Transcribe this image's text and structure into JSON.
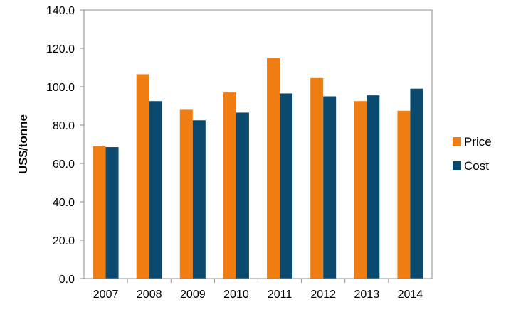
{
  "chart_data": {
    "type": "bar",
    "title": "",
    "xlabel": "",
    "ylabel": "US$/tonne",
    "ylim": [
      0,
      140
    ],
    "yticks": [
      "0.0",
      "20.0",
      "40.0",
      "60.0",
      "80.0",
      "100.0",
      "120.0",
      "140.0"
    ],
    "grid": false,
    "legend_position": "right",
    "categories": [
      "2007",
      "2008",
      "2009",
      "2010",
      "2011",
      "2012",
      "2013",
      "2014"
    ],
    "series": [
      {
        "name": "Price",
        "color": "#F07D12",
        "values": [
          69.0,
          106.5,
          88.0,
          97.0,
          115.0,
          104.5,
          92.5,
          87.5
        ]
      },
      {
        "name": "Cost",
        "color": "#0B4A6F",
        "values": [
          68.5,
          92.5,
          82.5,
          86.5,
          96.5,
          95.0,
          95.5,
          99.0
        ]
      }
    ]
  }
}
